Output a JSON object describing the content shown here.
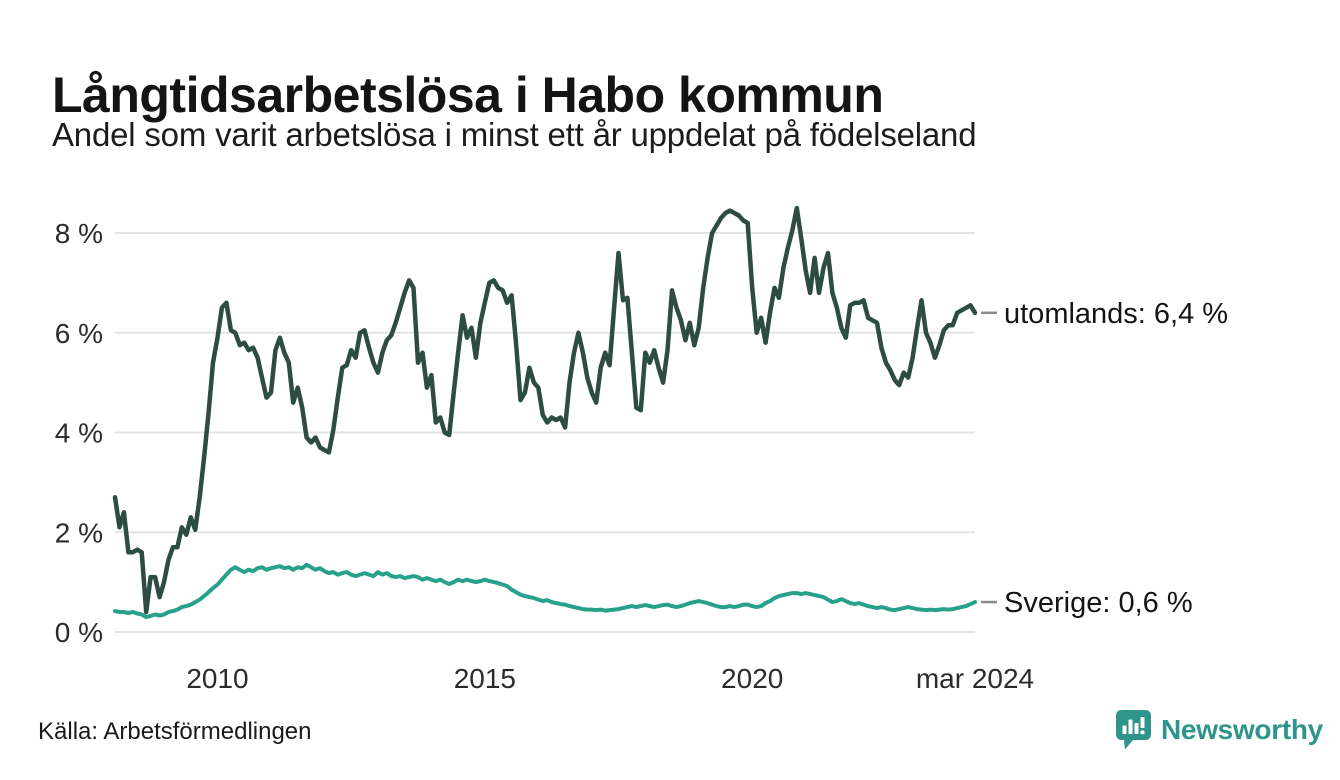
{
  "header": {
    "title": "Långtidsarbetslösa i Habo kommun",
    "subtitle": "Andel som varit arbetslösa i minst ett år uppdelat på födelseland"
  },
  "footer": {
    "source": "Källa: Arbetsförmedlingen",
    "brand": "Newsworthy",
    "brand_color": "#2e948c"
  },
  "chart_data": {
    "type": "line",
    "title": "Långtidsarbetslösa i Habo kommun",
    "subtitle": "Andel som varit arbetslösa i minst ett år uppdelat på födelseland",
    "x_unit": "month",
    "frequency": "monthly",
    "x_start": "feb 2008",
    "x_end": "mar 2024",
    "x_ticks": [
      {
        "label": "2010",
        "month_index": 23
      },
      {
        "label": "2015",
        "month_index": 83
      },
      {
        "label": "2020",
        "month_index": 143
      },
      {
        "label": "mar 2024",
        "month_index": 193
      }
    ],
    "y_ticks": [
      0,
      2,
      4,
      6,
      8
    ],
    "y_tick_labels": [
      "0 %",
      "2 %",
      "4 %",
      "6 %",
      "8 %"
    ],
    "ylim": [
      0,
      8.66
    ],
    "grid": "horizontal",
    "grid_color": "#e4e4e4",
    "legend_position": "right-end-labels",
    "series": [
      {
        "name": "utomlands",
        "label": "utomlands: 6,4 %",
        "last_value": 6.4,
        "color": "#2d4c43",
        "values": [
          2.7,
          2.1,
          2.4,
          1.6,
          1.6,
          1.65,
          1.6,
          0.4,
          1.1,
          1.1,
          0.7,
          1.0,
          1.45,
          1.7,
          1.7,
          2.1,
          1.95,
          2.3,
          2.05,
          2.7,
          3.5,
          4.4,
          5.4,
          5.9,
          6.5,
          6.6,
          6.05,
          6.0,
          5.75,
          5.8,
          5.65,
          5.7,
          5.5,
          5.1,
          4.7,
          4.8,
          5.65,
          5.9,
          5.6,
          5.4,
          4.6,
          4.9,
          4.5,
          3.9,
          3.8,
          3.9,
          3.7,
          3.65,
          3.6,
          4.05,
          4.7,
          5.3,
          5.35,
          5.65,
          5.5,
          6.0,
          6.05,
          5.7,
          5.4,
          5.2,
          5.6,
          5.85,
          5.95,
          6.2,
          6.5,
          6.8,
          7.05,
          6.9,
          5.4,
          5.6,
          4.9,
          5.15,
          4.2,
          4.3,
          4.0,
          3.95,
          4.8,
          5.6,
          6.35,
          5.9,
          6.1,
          5.5,
          6.2,
          6.6,
          7.0,
          7.05,
          6.9,
          6.85,
          6.6,
          6.75,
          5.8,
          4.65,
          4.8,
          5.3,
          5.0,
          4.9,
          4.35,
          4.2,
          4.3,
          4.25,
          4.3,
          4.1,
          5.0,
          5.6,
          6.0,
          5.6,
          5.1,
          4.8,
          4.6,
          5.3,
          5.6,
          5.35,
          6.5,
          7.6,
          6.65,
          6.7,
          5.6,
          4.5,
          4.45,
          5.6,
          5.4,
          5.65,
          5.3,
          5.0,
          5.65,
          6.85,
          6.5,
          6.25,
          5.85,
          6.2,
          5.75,
          6.1,
          6.9,
          7.5,
          8.0,
          8.15,
          8.3,
          8.4,
          8.45,
          8.4,
          8.35,
          8.25,
          8.2,
          6.9,
          6.0,
          6.3,
          5.8,
          6.4,
          6.9,
          6.7,
          7.3,
          7.7,
          8.05,
          8.5,
          7.9,
          7.25,
          6.8,
          7.5,
          6.8,
          7.3,
          7.6,
          6.8,
          6.5,
          6.1,
          5.9,
          6.55,
          6.6,
          6.6,
          6.65,
          6.3,
          6.25,
          6.2,
          5.7,
          5.4,
          5.25,
          5.05,
          4.95,
          5.2,
          5.1,
          5.5,
          6.1,
          6.65,
          6.0,
          5.8,
          5.5,
          5.75,
          6.05,
          6.15,
          6.15,
          6.4,
          6.45,
          6.5,
          6.55,
          6.4
        ]
      },
      {
        "name": "Sverige",
        "label": "Sverige: 0,6 %",
        "last_value": 0.6,
        "color": "#27a08c",
        "values": [
          0.42,
          0.4,
          0.4,
          0.38,
          0.4,
          0.37,
          0.35,
          0.3,
          0.32,
          0.35,
          0.33,
          0.35,
          0.4,
          0.42,
          0.45,
          0.5,
          0.52,
          0.55,
          0.6,
          0.65,
          0.72,
          0.8,
          0.88,
          0.95,
          1.05,
          1.15,
          1.25,
          1.3,
          1.25,
          1.2,
          1.25,
          1.22,
          1.28,
          1.3,
          1.25,
          1.28,
          1.3,
          1.32,
          1.28,
          1.3,
          1.25,
          1.3,
          1.28,
          1.35,
          1.3,
          1.25,
          1.28,
          1.22,
          1.18,
          1.2,
          1.15,
          1.18,
          1.2,
          1.15,
          1.12,
          1.15,
          1.18,
          1.15,
          1.12,
          1.2,
          1.15,
          1.18,
          1.12,
          1.1,
          1.12,
          1.08,
          1.1,
          1.12,
          1.1,
          1.05,
          1.08,
          1.05,
          1.02,
          1.05,
          1.0,
          0.96,
          1.0,
          1.05,
          1.02,
          1.05,
          1.02,
          1.0,
          1.02,
          1.05,
          1.02,
          1.0,
          0.98,
          0.95,
          0.92,
          0.85,
          0.8,
          0.75,
          0.72,
          0.7,
          0.68,
          0.65,
          0.62,
          0.64,
          0.6,
          0.58,
          0.56,
          0.55,
          0.52,
          0.5,
          0.48,
          0.46,
          0.45,
          0.45,
          0.44,
          0.45,
          0.43,
          0.44,
          0.45,
          0.46,
          0.48,
          0.5,
          0.52,
          0.5,
          0.52,
          0.54,
          0.52,
          0.5,
          0.52,
          0.54,
          0.55,
          0.52,
          0.5,
          0.52,
          0.55,
          0.58,
          0.6,
          0.62,
          0.6,
          0.58,
          0.55,
          0.52,
          0.5,
          0.5,
          0.52,
          0.5,
          0.52,
          0.55,
          0.55,
          0.52,
          0.5,
          0.52,
          0.58,
          0.62,
          0.68,
          0.72,
          0.74,
          0.76,
          0.78,
          0.78,
          0.76,
          0.78,
          0.76,
          0.74,
          0.72,
          0.7,
          0.65,
          0.6,
          0.62,
          0.66,
          0.62,
          0.58,
          0.56,
          0.58,
          0.55,
          0.52,
          0.5,
          0.48,
          0.5,
          0.48,
          0.45,
          0.44,
          0.46,
          0.48,
          0.5,
          0.48,
          0.46,
          0.45,
          0.44,
          0.45,
          0.44,
          0.45,
          0.46,
          0.45,
          0.46,
          0.48,
          0.5,
          0.52,
          0.56,
          0.6
        ]
      }
    ]
  }
}
